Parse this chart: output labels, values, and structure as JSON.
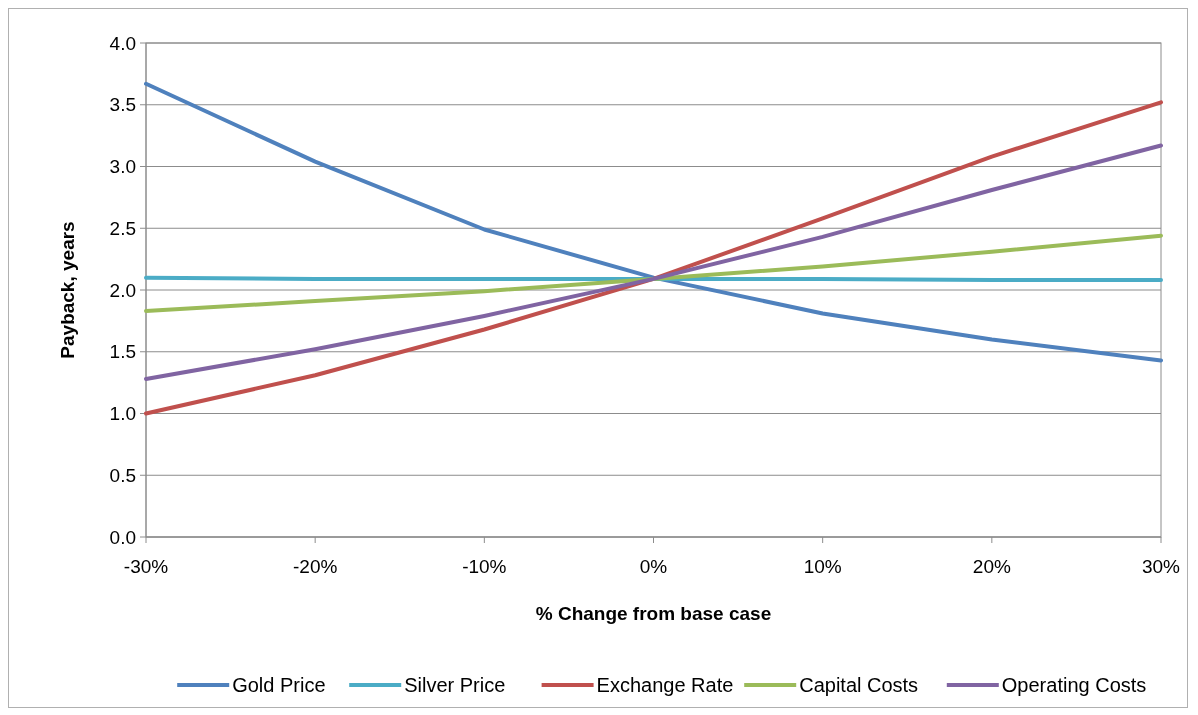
{
  "chart_data": {
    "type": "line",
    "xlabel": "% Change from base case",
    "ylabel": "Payback, years",
    "x": [
      -30,
      -20,
      -10,
      0,
      10,
      20,
      30
    ],
    "xlim": [
      -30,
      30
    ],
    "xticks": [
      {
        "value": -30,
        "label": "-30%"
      },
      {
        "value": -20,
        "label": "-20%"
      },
      {
        "value": -10,
        "label": "-10%"
      },
      {
        "value": 0,
        "label": "0%"
      },
      {
        "value": 10,
        "label": "10%"
      },
      {
        "value": 20,
        "label": "20%"
      },
      {
        "value": 30,
        "label": "30%"
      }
    ],
    "ylim": [
      0,
      4
    ],
    "yticks": [
      {
        "value": 0,
        "label": "0.0"
      },
      {
        "value": 0.5,
        "label": "0.5"
      },
      {
        "value": 1,
        "label": "1.0"
      },
      {
        "value": 1.5,
        "label": "1.5"
      },
      {
        "value": 2,
        "label": "2.0"
      },
      {
        "value": 2.5,
        "label": "2.5"
      },
      {
        "value": 3,
        "label": "3.0"
      },
      {
        "value": 3.5,
        "label": "3.5"
      },
      {
        "value": 4,
        "label": "4.0"
      }
    ],
    "grid": "y",
    "legend": "bottom",
    "marker": "none",
    "line_style": "solid",
    "series": [
      {
        "name": "Gold Price",
        "color": "#4f81bd",
        "values": [
          3.67,
          3.04,
          2.49,
          2.1,
          1.81,
          1.6,
          1.43
        ]
      },
      {
        "name": "Silver Price",
        "color": "#4bacc6",
        "values": [
          2.1,
          2.09,
          2.09,
          2.09,
          2.09,
          2.08,
          2.08
        ]
      },
      {
        "name": "Exchange Rate",
        "color": "#c0504d",
        "values": [
          1.0,
          1.31,
          1.68,
          2.09,
          2.58,
          3.08,
          3.52
        ]
      },
      {
        "name": "Capital Costs",
        "color": "#9bbb59",
        "values": [
          1.83,
          1.91,
          1.99,
          2.09,
          2.19,
          2.31,
          2.44
        ]
      },
      {
        "name": "Operating Costs",
        "color": "#8064a2",
        "values": [
          1.28,
          1.52,
          1.79,
          2.09,
          2.43,
          2.81,
          3.17
        ]
      }
    ]
  }
}
